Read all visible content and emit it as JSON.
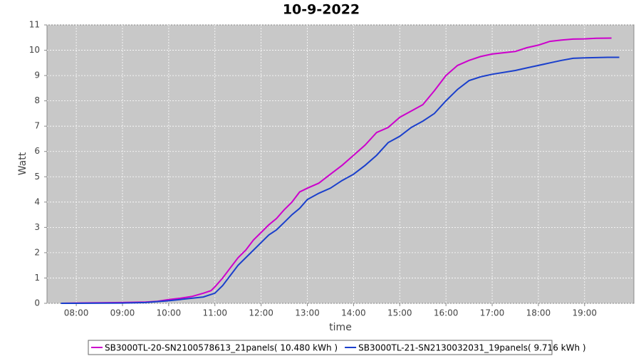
{
  "chart_data": {
    "type": "line",
    "title": "10-9-2022",
    "x_label": "time",
    "y_label": "Watt",
    "xlim": [
      "07:22",
      "20:04"
    ],
    "xticks": [
      "08:00",
      "09:00",
      "10:00",
      "11:00",
      "12:00",
      "13:00",
      "14:00",
      "15:00",
      "16:00",
      "17:00",
      "18:00",
      "19:00"
    ],
    "ylim": [
      0,
      11
    ],
    "yticks": [
      0,
      1,
      2,
      3,
      4,
      5,
      6,
      7,
      8,
      9,
      10,
      11
    ],
    "grid": true,
    "legend": "bottom",
    "series": [
      {
        "name": "SB3000TL-20-SN2100578613_21panels( 10.480 kWh )",
        "color": "#cc00cc",
        "x": [
          "07:40",
          "08:00",
          "08:30",
          "09:00",
          "09:30",
          "09:45",
          "10:00",
          "10:15",
          "10:30",
          "10:45",
          "10:55",
          "11:00",
          "11:10",
          "11:20",
          "11:30",
          "11:40",
          "11:50",
          "12:00",
          "12:10",
          "12:20",
          "12:30",
          "12:40",
          "12:50",
          "13:00",
          "13:15",
          "13:30",
          "13:45",
          "14:00",
          "14:15",
          "14:30",
          "14:45",
          "15:00",
          "15:15",
          "15:30",
          "15:45",
          "16:00",
          "16:15",
          "16:30",
          "16:45",
          "17:00",
          "17:30",
          "17:45",
          "18:00",
          "18:15",
          "18:30",
          "18:45",
          "19:00",
          "19:15",
          "19:35"
        ],
        "values": [
          0,
          0.01,
          0.02,
          0.03,
          0.05,
          0.08,
          0.15,
          0.2,
          0.27,
          0.4,
          0.5,
          0.65,
          1.0,
          1.4,
          1.8,
          2.1,
          2.5,
          2.8,
          3.1,
          3.35,
          3.7,
          4.0,
          4.4,
          4.55,
          4.75,
          5.1,
          5.45,
          5.85,
          6.25,
          6.75,
          6.95,
          7.35,
          7.6,
          7.85,
          8.4,
          9.0,
          9.4,
          9.6,
          9.75,
          9.85,
          9.95,
          10.1,
          10.2,
          10.35,
          10.4,
          10.44,
          10.45,
          10.47,
          10.48
        ]
      },
      {
        "name": "SB3000TL-21-SN2130032031_19panels( 9.716 kWh )",
        "color": "#1a3fcc",
        "x": [
          "07:40",
          "08:00",
          "09:00",
          "09:30",
          "10:00",
          "10:30",
          "10:45",
          "11:00",
          "11:10",
          "11:20",
          "11:30",
          "11:40",
          "11:50",
          "12:00",
          "12:10",
          "12:20",
          "12:30",
          "12:40",
          "12:50",
          "13:00",
          "13:15",
          "13:30",
          "13:45",
          "14:00",
          "14:15",
          "14:30",
          "14:45",
          "15:00",
          "15:15",
          "15:30",
          "15:45",
          "16:00",
          "16:15",
          "16:30",
          "16:45",
          "17:00",
          "17:30",
          "17:45",
          "18:00",
          "18:15",
          "18:30",
          "18:45",
          "19:00",
          "19:30",
          "19:45"
        ],
        "values": [
          0,
          0,
          0.01,
          0.03,
          0.1,
          0.2,
          0.25,
          0.4,
          0.7,
          1.1,
          1.5,
          1.8,
          2.1,
          2.4,
          2.7,
          2.9,
          3.2,
          3.5,
          3.75,
          4.1,
          4.35,
          4.55,
          4.85,
          5.1,
          5.45,
          5.85,
          6.35,
          6.6,
          6.95,
          7.2,
          7.5,
          8.0,
          8.45,
          8.8,
          8.95,
          9.05,
          9.2,
          9.3,
          9.4,
          9.5,
          9.6,
          9.68,
          9.7,
          9.72,
          9.72
        ]
      }
    ]
  }
}
